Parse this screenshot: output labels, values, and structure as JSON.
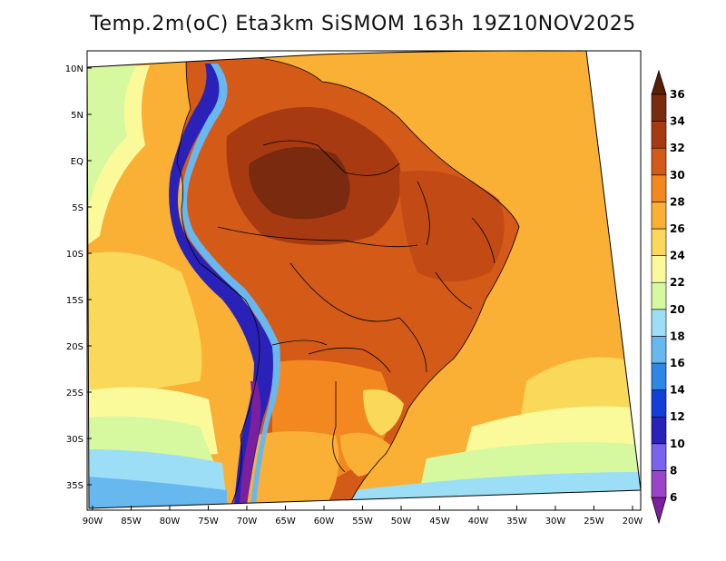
{
  "title": "Temp.2m(oC) Eta3km SiSMOM 163h 19Z10NOV2025",
  "lat_labels": [
    "10N",
    "5N",
    "EQ",
    "5S",
    "10S",
    "15S",
    "20S",
    "25S",
    "30S",
    "35S"
  ],
  "lon_labels": [
    "90W",
    "85W",
    "80W",
    "75W",
    "70W",
    "65W",
    "60W",
    "55W",
    "50W",
    "45W",
    "40W",
    "35W",
    "30W",
    "25W",
    "20W"
  ],
  "colorbar": {
    "labels": [
      "6",
      "8",
      "10",
      "12",
      "14",
      "16",
      "18",
      "20",
      "22",
      "24",
      "26",
      "28",
      "30",
      "32",
      "34",
      "36"
    ],
    "colors": [
      "#7b1f9e",
      "#9a44c9",
      "#7a63ee",
      "#2a22b8",
      "#1140d8",
      "#2e86e6",
      "#68b8f0",
      "#9bdef5",
      "#d6f89e",
      "#fafa9a",
      "#fad85a",
      "#f9b035",
      "#f48820",
      "#d45a18",
      "#a83a12",
      "#7a2a0e",
      "#5a1e08"
    ]
  },
  "palette": {
    "ocean_warm": "#f9b035",
    "ocean_mid": "#fad85a",
    "ocean_cool": "#fafa9a",
    "ocean_cooler": "#d6f89e",
    "ocean_cold": "#9bdef5",
    "ocean_colder": "#68b8f0",
    "land_hot": "#a83a12",
    "land_warm": "#d45a18",
    "land_orange": "#f48820",
    "andes_cold": "#2a22b8",
    "andes_violet": "#7b1f9e"
  }
}
